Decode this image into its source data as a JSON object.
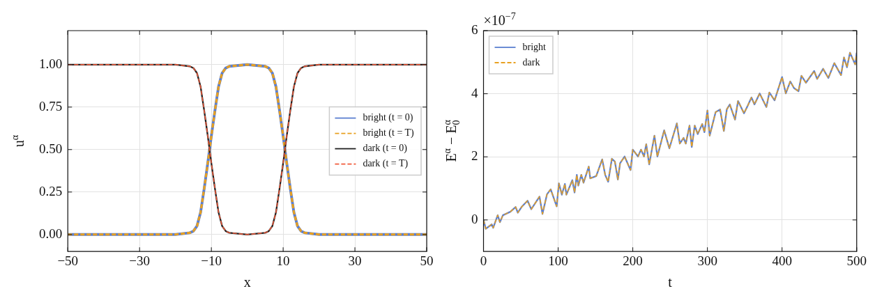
{
  "chart_data": [
    {
      "type": "line",
      "xlabel": "x",
      "ylabel": "u$^{α}$",
      "xlim": [
        -50,
        50
      ],
      "xticks": [
        -50,
        -30,
        -10,
        10,
        30,
        50
      ],
      "ylim": [
        -0.1,
        1.2
      ],
      "yticks": [
        {
          "value": 0,
          "label": "0.00"
        },
        {
          "value": 0.25,
          "label": "0.25"
        },
        {
          "value": 0.5,
          "label": "0.50"
        },
        {
          "value": 0.75,
          "label": "0.75"
        },
        {
          "value": 1,
          "label": "1.00"
        }
      ],
      "grid": true,
      "legend": "right",
      "marker": "none",
      "x": [
        -50,
        -20,
        -16,
        -15,
        -14,
        -13,
        -12,
        -11,
        -10.5,
        -10,
        -9,
        -8,
        -7,
        -6,
        -5,
        0,
        5,
        6,
        7,
        8,
        9,
        10,
        10.5,
        11,
        12,
        13,
        14,
        15,
        16,
        20,
        50
      ],
      "series": [
        {
          "name": "bright (t = 0)",
          "color": "#5b7fd0",
          "line_style": "solid",
          "values": [
            0,
            0,
            0.01,
            0.02,
            0.05,
            0.13,
            0.27,
            0.42,
            0.5,
            0.58,
            0.73,
            0.87,
            0.95,
            0.98,
            0.99,
            1,
            0.99,
            0.98,
            0.95,
            0.87,
            0.73,
            0.58,
            0.5,
            0.42,
            0.27,
            0.13,
            0.05,
            0.02,
            0.01,
            0,
            0
          ]
        },
        {
          "name": "bright (t = T)",
          "color": "#e8a020",
          "line_style": "dashed",
          "values": [
            0,
            0,
            0.01,
            0.02,
            0.05,
            0.13,
            0.27,
            0.42,
            0.5,
            0.58,
            0.73,
            0.87,
            0.95,
            0.98,
            0.99,
            1,
            0.99,
            0.98,
            0.95,
            0.87,
            0.73,
            0.58,
            0.5,
            0.42,
            0.27,
            0.13,
            0.05,
            0.02,
            0.01,
            0,
            0
          ]
        },
        {
          "name": "dark (t = 0)",
          "color": "#222222",
          "line_style": "solid",
          "values": [
            1,
            1,
            0.99,
            0.98,
            0.95,
            0.87,
            0.73,
            0.58,
            0.5,
            0.42,
            0.27,
            0.13,
            0.05,
            0.02,
            0.01,
            0,
            0.01,
            0.02,
            0.05,
            0.13,
            0.27,
            0.42,
            0.5,
            0.58,
            0.73,
            0.87,
            0.95,
            0.98,
            0.99,
            1,
            1
          ]
        },
        {
          "name": "dark (t = T)",
          "color": "#f05a3a",
          "line_style": "dashed",
          "values": [
            1,
            1,
            0.99,
            0.98,
            0.95,
            0.87,
            0.73,
            0.58,
            0.5,
            0.42,
            0.27,
            0.13,
            0.05,
            0.02,
            0.01,
            0,
            0.01,
            0.02,
            0.05,
            0.13,
            0.27,
            0.42,
            0.5,
            0.58,
            0.73,
            0.87,
            0.95,
            0.98,
            0.99,
            1,
            1
          ]
        }
      ]
    },
    {
      "type": "line",
      "xlabel": "t",
      "ylabel": "E$^{α}$ − E$_{0}$$^{α}$",
      "annotations": [
        "×10$^{−7}$"
      ],
      "xlim": [
        0,
        500
      ],
      "xticks": [
        0,
        100,
        200,
        300,
        400,
        500
      ],
      "ylim": [
        -1,
        6
      ],
      "yticks": [
        0,
        2,
        4,
        6
      ],
      "grid": true,
      "legend": "top left",
      "marker": "none",
      "x": [
        0,
        3,
        11,
        13,
        19,
        22,
        26,
        36,
        43,
        46,
        51,
        59,
        64,
        75,
        79,
        85,
        90,
        98,
        101,
        105,
        109,
        111,
        119,
        122,
        125,
        127,
        131,
        134,
        141,
        143,
        151,
        159,
        163,
        167,
        172,
        176,
        180,
        183,
        189,
        197,
        200,
        207,
        211,
        215,
        218,
        222,
        229,
        233,
        242,
        249,
        259,
        263,
        268,
        271,
        276,
        279,
        283,
        287,
        293,
        296,
        300,
        303,
        311,
        317,
        322,
        326,
        330,
        337,
        341,
        349,
        354,
        359,
        363,
        370,
        379,
        383,
        390,
        400,
        405,
        411,
        416,
        422,
        426,
        432,
        443,
        447,
        455,
        462,
        470,
        479,
        483,
        487,
        491,
        498,
        500
      ],
      "series": [
        {
          "name": "bright",
          "color": "#5b7fd0",
          "line_style": "solid",
          "values": [
            0,
            -0.28,
            -0.14,
            -0.25,
            0.15,
            -0.07,
            0.15,
            0.26,
            0.41,
            0.23,
            0.41,
            0.61,
            0.34,
            0.74,
            0.19,
            0.81,
            0.97,
            0.43,
            1.16,
            0.8,
            1.14,
            0.8,
            1.26,
            0.87,
            1.43,
            1.09,
            1.43,
            1.18,
            1.69,
            1.32,
            1.39,
            1.92,
            1.43,
            1.21,
            1.94,
            1.85,
            1.28,
            1.8,
            2.01,
            1.58,
            2.23,
            2.01,
            2.23,
            2.01,
            2.4,
            1.76,
            2.67,
            2.01,
            2.84,
            2.27,
            3.06,
            2.42,
            2.6,
            2.42,
            2.99,
            2.31,
            2.99,
            2.72,
            3.04,
            2.78,
            3.47,
            2.67,
            3.42,
            3.5,
            2.82,
            3.51,
            3.66,
            3.18,
            3.77,
            3.38,
            3.62,
            3.88,
            3.66,
            4.01,
            3.58,
            4.04,
            3.79,
            4.53,
            4.01,
            4.39,
            4.18,
            4.08,
            4.57,
            4.35,
            4.72,
            4.47,
            4.79,
            4.5,
            4.97,
            4.59,
            5.15,
            4.84,
            5.3,
            4.93,
            5.3
          ]
        },
        {
          "name": "dark",
          "color": "#e8a020",
          "line_style": "dashed",
          "values": [
            0,
            -0.28,
            -0.14,
            -0.25,
            0.15,
            -0.07,
            0.15,
            0.26,
            0.41,
            0.23,
            0.41,
            0.61,
            0.34,
            0.74,
            0.19,
            0.81,
            0.97,
            0.43,
            1.16,
            0.8,
            1.14,
            0.8,
            1.26,
            0.87,
            1.43,
            1.09,
            1.43,
            1.18,
            1.69,
            1.32,
            1.39,
            1.92,
            1.43,
            1.21,
            1.94,
            1.85,
            1.28,
            1.8,
            2.01,
            1.58,
            2.23,
            2.01,
            2.23,
            2.01,
            2.4,
            1.76,
            2.67,
            2.01,
            2.84,
            2.27,
            3.06,
            2.42,
            2.6,
            2.42,
            2.99,
            2.31,
            2.99,
            2.72,
            3.04,
            2.78,
            3.47,
            2.67,
            3.42,
            3.5,
            2.82,
            3.51,
            3.66,
            3.18,
            3.77,
            3.38,
            3.62,
            3.88,
            3.66,
            4.01,
            3.58,
            4.04,
            3.79,
            4.53,
            4.01,
            4.39,
            4.18,
            4.08,
            4.57,
            4.35,
            4.72,
            4.47,
            4.79,
            4.5,
            4.97,
            4.59,
            5.15,
            4.84,
            5.3,
            4.93,
            5.3
          ]
        }
      ]
    }
  ]
}
